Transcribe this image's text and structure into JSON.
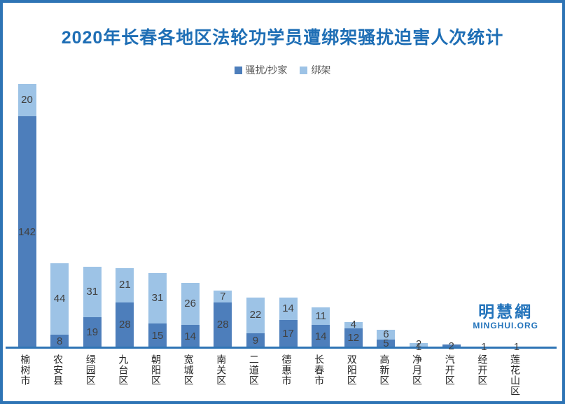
{
  "title": "2020年长春各地区法轮功学员遭绑架骚扰迫害人次统计",
  "legend": [
    {
      "label": "骚扰/抄家",
      "color": "#4d7ebb"
    },
    {
      "label": "绑架",
      "color": "#9dc3e6"
    }
  ],
  "watermark": {
    "cn": "明慧網",
    "en": "MINGHUI.ORG"
  },
  "colors": {
    "border": "#2e74b5",
    "title": "#1e6eb5",
    "axis": "#2e74b5",
    "value_label": "#404040",
    "legend_text": "#595959",
    "series_dark": "#4d7ebb",
    "series_light": "#9dc3e6",
    "watermark": "#2273bb"
  },
  "chart_data": {
    "type": "bar",
    "stacked": true,
    "title": "2020年长春各地区法轮功学员遭绑架骚扰迫害人次统计",
    "legend_position": "top",
    "value_labels": true,
    "grid": false,
    "ylim": [
      0,
      162
    ],
    "categories": [
      "榆树市",
      "农安县",
      "绿园区",
      "九台区",
      "朝阳区",
      "宽城区",
      "南关区",
      "二道区",
      "德惠市",
      "长春市",
      "双阳区",
      "高新区",
      "净月区",
      "汽开区",
      "经开区",
      "莲花山区"
    ],
    "series": [
      {
        "name": "骚扰/抄家",
        "color": "#4d7ebb",
        "values": [
          142,
          8,
          19,
          28,
          15,
          14,
          28,
          9,
          17,
          14,
          12,
          5,
          1,
          2,
          1,
          1
        ]
      },
      {
        "name": "绑架",
        "color": "#9dc3e6",
        "values": [
          20,
          44,
          31,
          21,
          31,
          26,
          7,
          22,
          14,
          11,
          4,
          6,
          2,
          0,
          0,
          0
        ]
      }
    ]
  }
}
